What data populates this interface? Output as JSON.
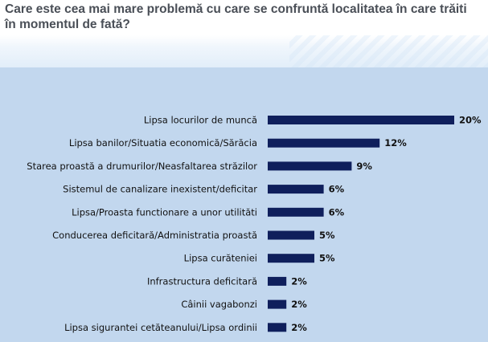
{
  "title": "Care este cea mai mare problemă cu care se confruntă localitatea în care trăiti în momentul de fată?",
  "colors": {
    "bar": "#0f1f5c",
    "panel": "#c2d7ee"
  },
  "chart_data": {
    "type": "bar",
    "orientation": "horizontal",
    "categories": [
      "Lipsa locurilor de muncă",
      "Lipsa banilor/Situatia economică/Sărăcia",
      "Starea proastă a drumurilor/Neasfaltarea străzilor",
      "Sistemul de canalizare inexistent/deficitar",
      "Lipsa/Proasta functionare a unor utilităti",
      "Conducerea deficitară/Administratia proastă",
      "Lipsa curăteniei",
      "Infrastructura deficitară",
      "Câinii vagabonzi",
      "Lipsa sigurantei cetăteanului/Lipsa ordinii"
    ],
    "values": [
      20,
      12,
      9,
      6,
      6,
      5,
      5,
      2,
      2,
      2
    ],
    "value_labels": [
      "20%",
      "12%",
      "9%",
      "6%",
      "6%",
      "5%",
      "5%",
      "2%",
      "2%",
      "2%"
    ],
    "unit": "%",
    "xlim": [
      0,
      20
    ],
    "grid": false
  }
}
